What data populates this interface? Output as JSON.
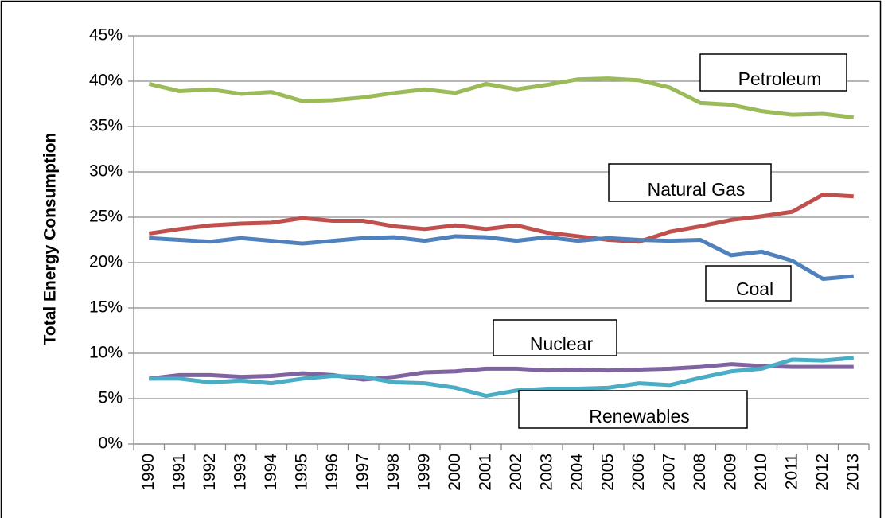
{
  "chart_data": {
    "type": "line",
    "y_label": "Total Energy Consumption",
    "categories": [
      "1990",
      "1991",
      "1992",
      "1993",
      "1994",
      "1995",
      "1996",
      "1997",
      "1998",
      "1999",
      "2000",
      "2001",
      "2002",
      "2003",
      "2004",
      "2005",
      "2006",
      "2007",
      "2008",
      "2009",
      "2010",
      "2011",
      "2012",
      "2013"
    ],
    "ylim": [
      0,
      45
    ],
    "yticks": [
      {
        "value": 0,
        "label": "0%"
      },
      {
        "value": 5,
        "label": "5%"
      },
      {
        "value": 10,
        "label": "10%"
      },
      {
        "value": 15,
        "label": "15%"
      },
      {
        "value": 20,
        "label": "20%"
      },
      {
        "value": 25,
        "label": "25%"
      },
      {
        "value": 30,
        "label": "30%"
      },
      {
        "value": 35,
        "label": "35%"
      },
      {
        "value": 40,
        "label": "40%"
      },
      {
        "value": 45,
        "label": "45%"
      }
    ],
    "grid": true,
    "series": [
      {
        "name": "Petroleum",
        "color": "#9bbb59",
        "values": [
          39.7,
          38.9,
          39.1,
          38.6,
          38.8,
          37.8,
          37.9,
          38.2,
          38.7,
          39.1,
          38.7,
          39.7,
          39.1,
          39.6,
          40.2,
          40.3,
          40.1,
          39.3,
          37.6,
          37.4,
          36.7,
          36.3,
          36.4,
          36.0
        ]
      },
      {
        "name": "Natural Gas",
        "color": "#c0504d",
        "values": [
          23.2,
          23.7,
          24.1,
          24.3,
          24.4,
          24.9,
          24.6,
          24.6,
          24.0,
          23.7,
          24.1,
          23.7,
          24.1,
          23.3,
          22.9,
          22.5,
          22.3,
          23.4,
          24.0,
          24.7,
          25.1,
          25.6,
          27.5,
          27.3
        ]
      },
      {
        "name": "Coal",
        "color": "#4f81bd",
        "values": [
          22.7,
          22.5,
          22.3,
          22.7,
          22.4,
          22.1,
          22.4,
          22.7,
          22.8,
          22.4,
          22.9,
          22.8,
          22.4,
          22.8,
          22.4,
          22.7,
          22.5,
          22.4,
          22.5,
          20.8,
          21.2,
          20.2,
          18.2,
          18.5
        ]
      },
      {
        "name": "Nuclear",
        "color": "#8064a2",
        "values": [
          7.2,
          7.6,
          7.6,
          7.4,
          7.5,
          7.8,
          7.6,
          7.1,
          7.4,
          7.9,
          8.0,
          8.3,
          8.3,
          8.1,
          8.2,
          8.1,
          8.2,
          8.3,
          8.5,
          8.8,
          8.6,
          8.5,
          8.5,
          8.5
        ]
      },
      {
        "name": "Renewables",
        "color": "#4bacc6",
        "values": [
          7.2,
          7.2,
          6.8,
          7.0,
          6.7,
          7.2,
          7.5,
          7.4,
          6.8,
          6.7,
          6.2,
          5.3,
          5.9,
          6.1,
          6.1,
          6.2,
          6.7,
          6.5,
          7.3,
          8.0,
          8.3,
          9.3,
          9.2,
          9.5
        ]
      }
    ]
  }
}
